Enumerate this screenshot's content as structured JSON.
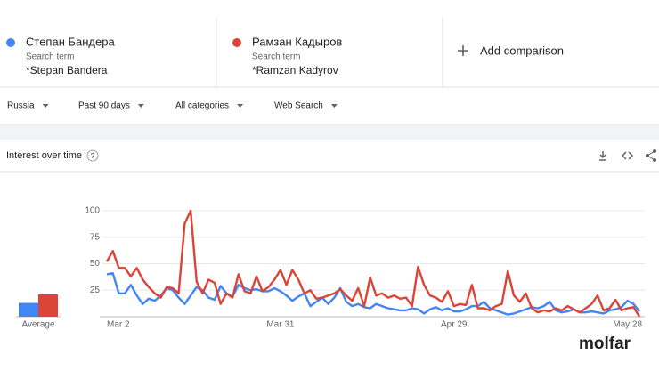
{
  "header": {
    "terms": [
      {
        "name": "Степан Бандера",
        "kind": "Search term",
        "topic": "*Stepan Bandera",
        "color": "#4285f4"
      },
      {
        "name": "Рамзан Кадыров",
        "kind": "Search term",
        "topic": "*Ramzan Kadyrov",
        "color": "#db4437"
      }
    ],
    "add": "Add comparison"
  },
  "filters": [
    "Russia",
    "Past 90 days",
    "All categories",
    "Web Search"
  ],
  "watermark": "molfar",
  "chart_data": {
    "type": "line",
    "title": "Interest over time",
    "average_label": "Average",
    "categories": [
      "Mar 2",
      null,
      null,
      null,
      null,
      null,
      null,
      null,
      null,
      null,
      null,
      null,
      null,
      null,
      null,
      null,
      null,
      null,
      null,
      null,
      null,
      null,
      null,
      null,
      null,
      null,
      null,
      null,
      null,
      "Mar 31",
      null,
      null,
      null,
      null,
      null,
      null,
      null,
      null,
      null,
      null,
      null,
      null,
      null,
      null,
      null,
      null,
      null,
      null,
      null,
      null,
      null,
      null,
      null,
      null,
      null,
      null,
      null,
      null,
      "Apr 29",
      null,
      null,
      null,
      null,
      null,
      null,
      null,
      null,
      null,
      null,
      null,
      null,
      null,
      null,
      null,
      null,
      null,
      null,
      null,
      null,
      null,
      null,
      null,
      null,
      null,
      null,
      null,
      null,
      "May 28",
      null,
      null
    ],
    "series": [
      {
        "name": "Степан Бандера",
        "color": "#4285f4",
        "average": 13,
        "values": [
          40,
          41,
          22,
          22,
          30,
          20,
          12,
          17,
          15,
          20,
          27,
          25,
          18,
          12,
          20,
          28,
          25,
          18,
          16,
          29,
          22,
          19,
          30,
          27,
          25,
          26,
          24,
          24,
          27,
          24,
          20,
          15,
          19,
          22,
          10,
          14,
          18,
          12,
          18,
          27,
          14,
          10,
          12,
          9,
          8,
          12,
          10,
          8,
          7,
          6,
          6,
          8,
          7,
          3,
          7,
          9,
          6,
          8,
          5,
          5,
          7,
          10,
          10,
          14,
          8,
          6,
          4,
          2,
          3,
          5,
          7,
          9,
          8,
          10,
          14,
          6,
          4,
          5,
          7,
          4,
          4,
          5,
          4,
          3,
          6,
          7,
          9,
          15,
          12,
          5
        ]
      },
      {
        "name": "Рамзан Кадыров",
        "color": "#db4437",
        "average": 21,
        "values": [
          52,
          62,
          46,
          46,
          38,
          46,
          35,
          28,
          22,
          18,
          28,
          27,
          22,
          88,
          100,
          33,
          22,
          35,
          32,
          12,
          22,
          18,
          40,
          24,
          22,
          38,
          24,
          28,
          35,
          44,
          30,
          44,
          35,
          22,
          25,
          17,
          18,
          20,
          22,
          26,
          20,
          15,
          27,
          10,
          37,
          20,
          22,
          18,
          20,
          17,
          18,
          10,
          47,
          30,
          20,
          18,
          14,
          24,
          10,
          12,
          11,
          30,
          8,
          8,
          6,
          10,
          12,
          43,
          20,
          14,
          22,
          8,
          4,
          6,
          5,
          8,
          6,
          10,
          7,
          4,
          8,
          12,
          20,
          6,
          8,
          16,
          6,
          8,
          9,
          0
        ]
      }
    ],
    "ylim": [
      0,
      100
    ],
    "yticks": [
      25,
      50,
      75,
      100
    ],
    "grid": true
  }
}
